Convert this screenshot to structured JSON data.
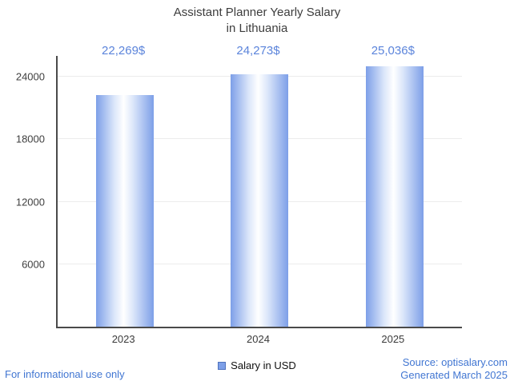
{
  "title": {
    "line1": "Assistant Planner Yearly Salary",
    "line2": "in Lithuania"
  },
  "chart_data": {
    "type": "bar",
    "title": "Assistant Planner Yearly Salary in Lithuania",
    "categories": [
      "2023",
      "2024",
      "2025"
    ],
    "values": [
      22269,
      24273,
      25036
    ],
    "value_labels": [
      "22,269$",
      "24,273$",
      "25,036$"
    ],
    "series_name": "Salary in USD",
    "yticks": [
      6000,
      12000,
      18000,
      24000
    ],
    "ylim": [
      0,
      26000
    ],
    "grid": true,
    "legend_position": "bottom",
    "xlabel": "",
    "ylabel": ""
  },
  "legend": {
    "label": "Salary in USD"
  },
  "footer": {
    "disclaimer": "For informational use only",
    "source": "Source: optisalary.com",
    "generated": "Generated March 2025"
  },
  "colors": {
    "accent_blue": "#4176d2",
    "value_label_blue": "#5b84db",
    "bar_edge": "#7d9fe8",
    "bar_center": "#ffffff",
    "axis": "#4a4a4a",
    "grid": "#ececec",
    "title_text": "#3d3d3d"
  }
}
